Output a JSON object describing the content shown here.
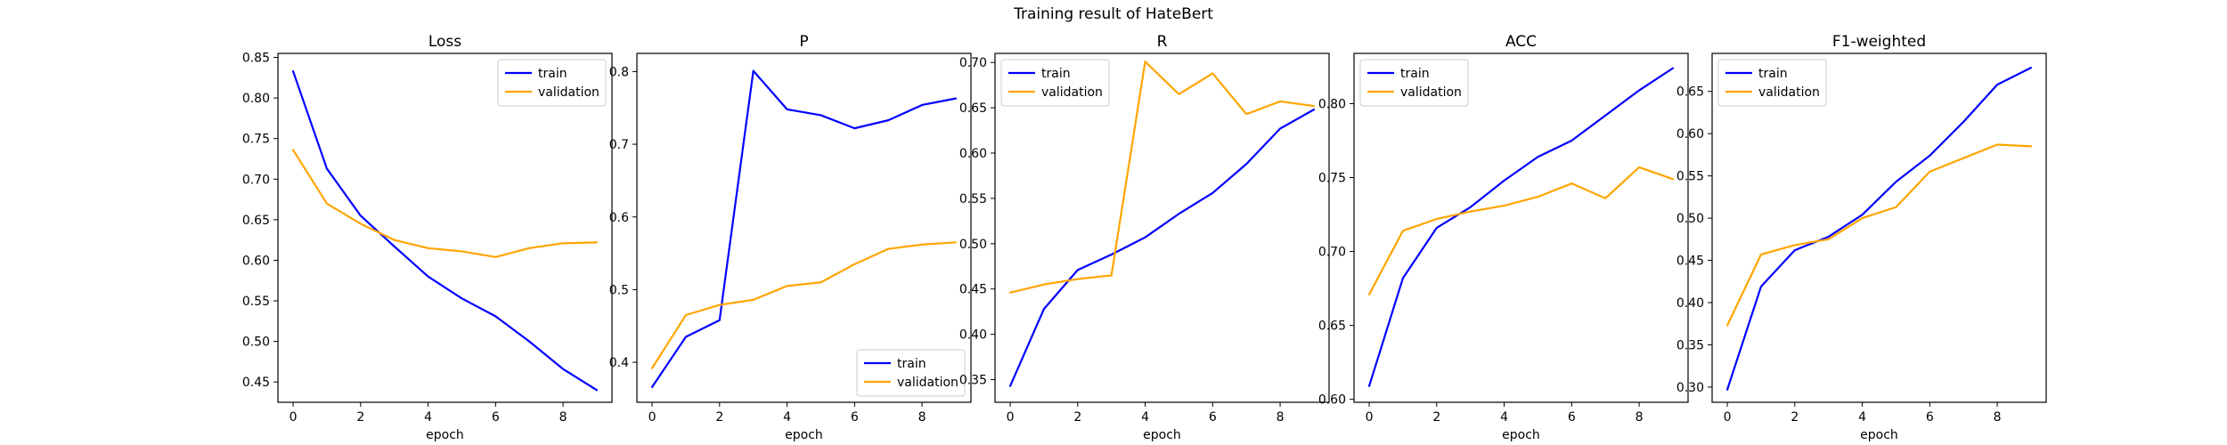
{
  "figure": {
    "title": "Training result of HateBert"
  },
  "colors": {
    "train": "#0000ff",
    "validation": "#ffa500"
  },
  "chart_data": [
    {
      "type": "line",
      "title": "Loss",
      "xlabel": "epoch",
      "ylabel": "",
      "x": [
        0,
        1,
        2,
        3,
        4,
        5,
        6,
        7,
        8,
        9
      ],
      "xticks": [
        0,
        2,
        4,
        6,
        8
      ],
      "ylim": [
        0.425,
        0.855
      ],
      "yticks": [
        0.45,
        0.5,
        0.55,
        0.6,
        0.65,
        0.7,
        0.75,
        0.8,
        0.85
      ],
      "ytick_labels": [
        "0.45",
        "0.50",
        "0.55",
        "0.60",
        "0.65",
        "0.70",
        "0.75",
        "0.80",
        "0.85"
      ],
      "legend_loc": "upper right",
      "grid": false,
      "series": [
        {
          "name": "train",
          "values": [
            0.833,
            0.713,
            0.655,
            0.617,
            0.58,
            0.553,
            0.531,
            0.5,
            0.466,
            0.44
          ]
        },
        {
          "name": "validation",
          "values": [
            0.736,
            0.67,
            0.645,
            0.625,
            0.615,
            0.611,
            0.604,
            0.615,
            0.621,
            0.622
          ]
        }
      ]
    },
    {
      "type": "line",
      "title": "P",
      "xlabel": "epoch",
      "ylabel": "",
      "x": [
        0,
        1,
        2,
        3,
        4,
        5,
        6,
        7,
        8,
        9
      ],
      "xticks": [
        0,
        2,
        4,
        6,
        8
      ],
      "ylim": [
        0.345,
        0.825
      ],
      "yticks": [
        0.4,
        0.5,
        0.6,
        0.7,
        0.8
      ],
      "ytick_labels": [
        "0.4",
        "0.5",
        "0.6",
        "0.7",
        "0.8"
      ],
      "legend_loc": "lower right",
      "grid": false,
      "series": [
        {
          "name": "train",
          "values": [
            0.366,
            0.435,
            0.458,
            0.801,
            0.748,
            0.74,
            0.722,
            0.733,
            0.754,
            0.763
          ]
        },
        {
          "name": "validation",
          "values": [
            0.392,
            0.465,
            0.479,
            0.486,
            0.505,
            0.51,
            0.535,
            0.556,
            0.562,
            0.565
          ]
        }
      ]
    },
    {
      "type": "line",
      "title": "R",
      "xlabel": "epoch",
      "ylabel": "",
      "x": [
        0,
        1,
        2,
        3,
        4,
        5,
        6,
        7,
        8,
        9
      ],
      "xticks": [
        0,
        2,
        4,
        6,
        8
      ],
      "ylim": [
        0.325,
        0.71
      ],
      "yticks": [
        0.35,
        0.4,
        0.45,
        0.5,
        0.55,
        0.6,
        0.65,
        0.7
      ],
      "ytick_labels": [
        "0.35",
        "0.40",
        "0.45",
        "0.50",
        "0.55",
        "0.60",
        "0.65",
        "0.70"
      ],
      "legend_loc": "upper left",
      "grid": false,
      "series": [
        {
          "name": "train",
          "values": [
            0.343,
            0.428,
            0.471,
            0.488,
            0.507,
            0.533,
            0.556,
            0.588,
            0.627,
            0.648
          ]
        },
        {
          "name": "validation",
          "values": [
            0.446,
            0.455,
            0.461,
            0.465,
            0.701,
            0.665,
            0.688,
            0.643,
            0.657,
            0.652
          ]
        }
      ]
    },
    {
      "type": "line",
      "title": "ACC",
      "xlabel": "epoch",
      "ylabel": "",
      "x": [
        0,
        1,
        2,
        3,
        4,
        5,
        6,
        7,
        8,
        9
      ],
      "xticks": [
        0,
        2,
        4,
        6,
        8
      ],
      "ylim": [
        0.598,
        0.834
      ],
      "yticks": [
        0.6,
        0.65,
        0.7,
        0.75,
        0.8
      ],
      "ytick_labels": [
        "0.60",
        "0.65",
        "0.70",
        "0.75",
        "0.80"
      ],
      "legend_loc": "upper left",
      "grid": false,
      "series": [
        {
          "name": "train",
          "values": [
            0.609,
            0.682,
            0.716,
            0.73,
            0.748,
            0.764,
            0.775,
            0.792,
            0.809,
            0.824
          ]
        },
        {
          "name": "validation",
          "values": [
            0.671,
            0.714,
            0.722,
            0.727,
            0.731,
            0.737,
            0.746,
            0.736,
            0.757,
            0.749
          ]
        }
      ]
    },
    {
      "type": "line",
      "title": "F1-weighted",
      "xlabel": "epoch",
      "ylabel": "",
      "x": [
        0,
        1,
        2,
        3,
        4,
        5,
        6,
        7,
        8,
        9
      ],
      "xticks": [
        0,
        2,
        4,
        6,
        8
      ],
      "ylim": [
        0.282,
        0.695
      ],
      "yticks": [
        0.3,
        0.35,
        0.4,
        0.45,
        0.5,
        0.55,
        0.6,
        0.65
      ],
      "ytick_labels": [
        "0.30",
        "0.35",
        "0.40",
        "0.45",
        "0.50",
        "0.55",
        "0.60",
        "0.65"
      ],
      "legend_loc": "upper left",
      "grid": false,
      "series": [
        {
          "name": "train",
          "values": [
            0.297,
            0.419,
            0.462,
            0.478,
            0.504,
            0.543,
            0.574,
            0.614,
            0.658,
            0.678
          ]
        },
        {
          "name": "validation",
          "values": [
            0.373,
            0.457,
            0.468,
            0.475,
            0.5,
            0.513,
            0.555,
            0.571,
            0.587,
            0.585
          ]
        }
      ]
    }
  ]
}
